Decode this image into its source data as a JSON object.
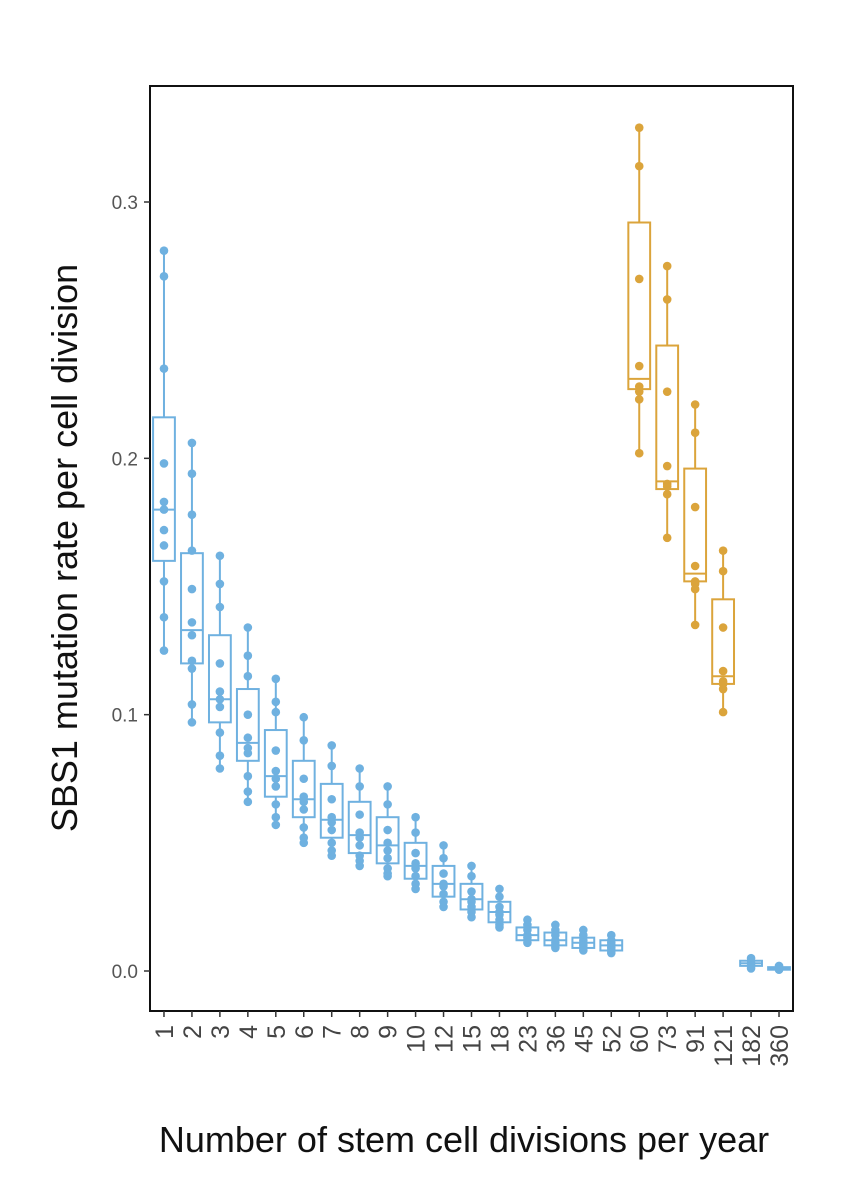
{
  "chart_data": {
    "type": "boxplot",
    "title": "",
    "xlabel": "Number of stem cell divisions per year",
    "ylabel": "SBS1 mutation rate per cell division",
    "ylim": [
      -0.015,
      0.345
    ],
    "yticks": [
      0.0,
      0.1,
      0.2,
      0.3
    ],
    "ytick_labels": [
      "0.0",
      "0.1",
      "0.2",
      "0.3"
    ],
    "grid": false,
    "legend": "none",
    "colors": {
      "blue": "#6fb1e0",
      "orange": "#dba43b"
    },
    "categories": [
      "1",
      "2",
      "3",
      "4",
      "5",
      "6",
      "7",
      "8",
      "9",
      "10",
      "12",
      "15",
      "18",
      "23",
      "36",
      "45",
      "52",
      "60",
      "73",
      "91",
      "121",
      "182",
      "360"
    ],
    "boxes": [
      {
        "category": "1",
        "color": "blue",
        "q1": 0.16,
        "median": 0.18,
        "q3": 0.216,
        "whisker_low": 0.125,
        "whisker_high": 0.281,
        "points": [
          0.281,
          0.271,
          0.235,
          0.198,
          0.183,
          0.18,
          0.172,
          0.166,
          0.152,
          0.138,
          0.125
        ]
      },
      {
        "category": "2",
        "color": "blue",
        "q1": 0.12,
        "median": 0.133,
        "q3": 0.163,
        "whisker_low": 0.097,
        "whisker_high": 0.206,
        "points": [
          0.206,
          0.194,
          0.178,
          0.164,
          0.149,
          0.136,
          0.131,
          0.121,
          0.118,
          0.104,
          0.097
        ]
      },
      {
        "category": "3",
        "color": "blue",
        "q1": 0.097,
        "median": 0.106,
        "q3": 0.131,
        "whisker_low": 0.079,
        "whisker_high": 0.162,
        "points": [
          0.162,
          0.151,
          0.142,
          0.12,
          0.109,
          0.106,
          0.103,
          0.093,
          0.084,
          0.079
        ]
      },
      {
        "category": "4",
        "color": "blue",
        "q1": 0.082,
        "median": 0.089,
        "q3": 0.11,
        "whisker_low": 0.066,
        "whisker_high": 0.134,
        "points": [
          0.134,
          0.123,
          0.115,
          0.1,
          0.091,
          0.087,
          0.085,
          0.076,
          0.07,
          0.066
        ]
      },
      {
        "category": "5",
        "color": "blue",
        "q1": 0.068,
        "median": 0.076,
        "q3": 0.094,
        "whisker_low": 0.057,
        "whisker_high": 0.114,
        "points": [
          0.114,
          0.105,
          0.101,
          0.086,
          0.078,
          0.075,
          0.072,
          0.065,
          0.06,
          0.057
        ]
      },
      {
        "category": "6",
        "color": "blue",
        "q1": 0.06,
        "median": 0.067,
        "q3": 0.082,
        "whisker_low": 0.05,
        "whisker_high": 0.099,
        "points": [
          0.099,
          0.09,
          0.075,
          0.068,
          0.066,
          0.063,
          0.056,
          0.052,
          0.05
        ]
      },
      {
        "category": "7",
        "color": "blue",
        "q1": 0.052,
        "median": 0.059,
        "q3": 0.073,
        "whisker_low": 0.045,
        "whisker_high": 0.088,
        "points": [
          0.088,
          0.08,
          0.067,
          0.06,
          0.058,
          0.055,
          0.05,
          0.047,
          0.045
        ]
      },
      {
        "category": "8",
        "color": "blue",
        "q1": 0.046,
        "median": 0.053,
        "q3": 0.066,
        "whisker_low": 0.041,
        "whisker_high": 0.079,
        "points": [
          0.079,
          0.072,
          0.061,
          0.054,
          0.052,
          0.049,
          0.045,
          0.043,
          0.041
        ]
      },
      {
        "category": "9",
        "color": "blue",
        "q1": 0.042,
        "median": 0.049,
        "q3": 0.06,
        "whisker_low": 0.037,
        "whisker_high": 0.072,
        "points": [
          0.072,
          0.065,
          0.055,
          0.05,
          0.047,
          0.044,
          0.04,
          0.038,
          0.037
        ]
      },
      {
        "category": "10",
        "color": "blue",
        "q1": 0.036,
        "median": 0.041,
        "q3": 0.05,
        "whisker_low": 0.032,
        "whisker_high": 0.06,
        "points": [
          0.06,
          0.054,
          0.046,
          0.042,
          0.04,
          0.037,
          0.034,
          0.032
        ]
      },
      {
        "category": "12",
        "color": "blue",
        "q1": 0.029,
        "median": 0.034,
        "q3": 0.041,
        "whisker_low": 0.025,
        "whisker_high": 0.049,
        "points": [
          0.049,
          0.044,
          0.038,
          0.034,
          0.033,
          0.03,
          0.027,
          0.025
        ]
      },
      {
        "category": "15",
        "color": "blue",
        "q1": 0.024,
        "median": 0.028,
        "q3": 0.034,
        "whisker_low": 0.021,
        "whisker_high": 0.041,
        "points": [
          0.041,
          0.037,
          0.031,
          0.028,
          0.027,
          0.025,
          0.023,
          0.021
        ]
      },
      {
        "category": "18",
        "color": "blue",
        "q1": 0.019,
        "median": 0.023,
        "q3": 0.027,
        "whisker_low": 0.017,
        "whisker_high": 0.032,
        "points": [
          0.032,
          0.029,
          0.025,
          0.023,
          0.022,
          0.02,
          0.018,
          0.017
        ]
      },
      {
        "category": "23",
        "color": "blue",
        "q1": 0.012,
        "median": 0.014,
        "q3": 0.017,
        "whisker_low": 0.011,
        "whisker_high": 0.02,
        "points": [
          0.02,
          0.018,
          0.016,
          0.014,
          0.013,
          0.012,
          0.011
        ]
      },
      {
        "category": "36",
        "color": "blue",
        "q1": 0.01,
        "median": 0.012,
        "q3": 0.015,
        "whisker_low": 0.009,
        "whisker_high": 0.018,
        "points": [
          0.018,
          0.016,
          0.014,
          0.012,
          0.011,
          0.01,
          0.009
        ]
      },
      {
        "category": "45",
        "color": "blue",
        "q1": 0.009,
        "median": 0.011,
        "q3": 0.013,
        "whisker_low": 0.008,
        "whisker_high": 0.016,
        "points": [
          0.016,
          0.014,
          0.012,
          0.011,
          0.01,
          0.009,
          0.008
        ]
      },
      {
        "category": "52",
        "color": "blue",
        "q1": 0.008,
        "median": 0.01,
        "q3": 0.012,
        "whisker_low": 0.007,
        "whisker_high": 0.014,
        "points": [
          0.014,
          0.012,
          0.011,
          0.01,
          0.009,
          0.008,
          0.007
        ]
      },
      {
        "category": "60",
        "color": "orange",
        "q1": 0.227,
        "median": 0.231,
        "q3": 0.292,
        "whisker_low": 0.202,
        "whisker_high": 0.329,
        "points": [
          0.329,
          0.314,
          0.27,
          0.236,
          0.228,
          0.226,
          0.223,
          0.202
        ]
      },
      {
        "category": "73",
        "color": "orange",
        "q1": 0.188,
        "median": 0.191,
        "q3": 0.244,
        "whisker_low": 0.169,
        "whisker_high": 0.275,
        "points": [
          0.275,
          0.262,
          0.226,
          0.197,
          0.19,
          0.189,
          0.186,
          0.169
        ]
      },
      {
        "category": "91",
        "color": "orange",
        "q1": 0.152,
        "median": 0.155,
        "q3": 0.196,
        "whisker_low": 0.135,
        "whisker_high": 0.221,
        "points": [
          0.221,
          0.21,
          0.181,
          0.158,
          0.152,
          0.151,
          0.149,
          0.135
        ]
      },
      {
        "category": "121",
        "color": "orange",
        "q1": 0.112,
        "median": 0.115,
        "q3": 0.145,
        "whisker_low": 0.101,
        "whisker_high": 0.164,
        "points": [
          0.164,
          0.156,
          0.134,
          0.117,
          0.113,
          0.112,
          0.11,
          0.101
        ]
      },
      {
        "category": "182",
        "color": "blue",
        "q1": 0.002,
        "median": 0.003,
        "q3": 0.004,
        "whisker_low": 0.001,
        "whisker_high": 0.005,
        "points": [
          0.005,
          0.004,
          0.003,
          0.003,
          0.002,
          0.001
        ]
      },
      {
        "category": "360",
        "color": "blue",
        "q1": 0.0005,
        "median": 0.001,
        "q3": 0.0015,
        "whisker_low": 0.0003,
        "whisker_high": 0.002,
        "points": [
          0.002,
          0.0015,
          0.001,
          0.0008,
          0.0005
        ]
      }
    ]
  }
}
